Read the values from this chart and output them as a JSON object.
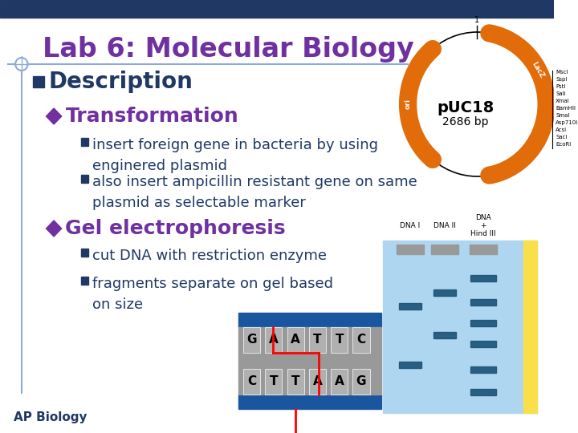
{
  "background_color": "#ffffff",
  "title_bar_color": "#1f3864",
  "title_text": "Lab 6: Molecular Biology",
  "title_color": "#7030a0",
  "title_fontsize": 24,
  "line_color": "#8eaadb",
  "bullet1_text": "Description",
  "bullet1_color": "#1f3864",
  "bullet1_fontsize": 20,
  "bullet2a_text": "Transformation",
  "bullet2b_text": "Gel electrophoresis",
  "bullet2_color": "#7030a0",
  "bullet2_fontsize": 18,
  "sub_bullet_color": "#1f3864",
  "sub_bullet_fontsize": 13,
  "footer_text": "AP Biology",
  "footer_color": "#1f3864",
  "footer_fontsize": 11,
  "plasmid_color": "#e26b0a",
  "puc_label": "pUC18",
  "puc_sublabel": "2686 bp",
  "square_bullet_color": "#1f3864",
  "diamond_bullet_color": "#7030a0",
  "gel_bg_color": "#aed6f1",
  "gel_band_color": "#1a5276",
  "gel_ruler_color": "#f9e04b",
  "dna_top_color": "#1a56a0",
  "dna_mid_color": "#b0b0b0"
}
